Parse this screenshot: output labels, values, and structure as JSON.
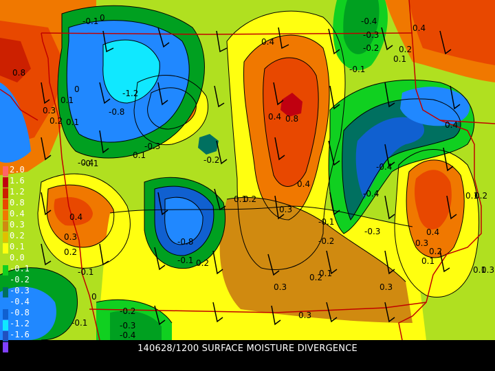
{
  "product_title": "140628/1200 SURFACE MOISTURE DIVERGENCE",
  "legend": [
    {
      "label": "2.0",
      "color": "#ff6666"
    },
    {
      "label": "1.6",
      "color": "#c00010"
    },
    {
      "label": "1.2",
      "color": "#cc2000"
    },
    {
      "label": "0.8",
      "color": "#e84800"
    },
    {
      "label": "0.4",
      "color": "#f07800"
    },
    {
      "label": "0.3",
      "color": "#d08a10"
    },
    {
      "label": "0.2",
      "color": "#e0c000"
    },
    {
      "label": "0.1",
      "color": "#ffff10"
    },
    {
      "label": "0.0",
      "color": "#b0e020"
    },
    {
      "label": "-0.1",
      "color": "#10d020"
    },
    {
      "label": "-0.2",
      "color": "#00a020"
    },
    {
      "label": "-0.3",
      "color": "#007060"
    },
    {
      "label": "-0.4",
      "color": "#2088ff"
    },
    {
      "label": "-0.8",
      "color": "#1060d0"
    },
    {
      "label": "-1.2",
      "color": "#10e8ff"
    },
    {
      "label": "-1.6",
      "color": "#2050c0"
    },
    {
      "label": "",
      "color": "#8040ff"
    }
  ],
  "contour_labels": [
    "-0.1",
    "0",
    "-0.4",
    "-0.3",
    "-0.2",
    "0.4",
    "0.2",
    "0.4",
    "0.1",
    "-0.1",
    "0.8",
    "0.1",
    "0.3",
    "-1.2",
    "-0.8",
    "0.8",
    "0.2",
    "0.1",
    "0",
    "0.1",
    "-0.4",
    "-0.3",
    "0.4",
    "-0.4",
    "-0.2",
    "-0.1",
    "0.4",
    "0.1",
    "0.2",
    "0.3",
    "-0.4",
    "0.1",
    "0.2",
    "-0.8",
    "-0.1",
    "0.2",
    "0.3",
    "0.2",
    "0.4",
    "-0.3",
    "-0.2",
    "-0.1",
    "0.3",
    "0.4",
    "0.1",
    "0.2",
    "0.1",
    "0.3",
    "0.2",
    "0.1",
    "0.3",
    "0.3",
    "-0.1",
    "0.3",
    "-0.2",
    "0",
    "-0.3",
    "-0.4",
    "-0.1",
    "0.4"
  ]
}
